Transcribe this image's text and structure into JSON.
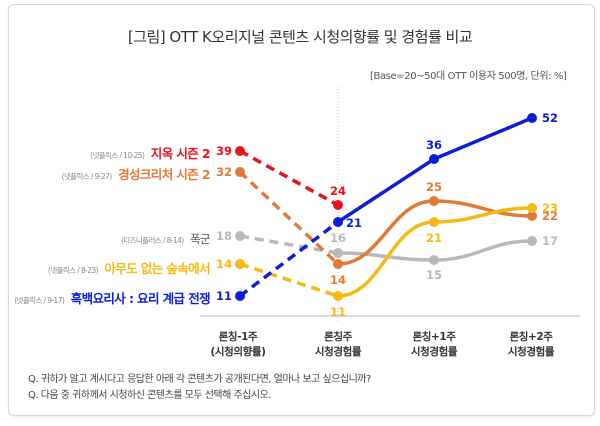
{
  "chart_data": {
    "type": "line",
    "title": "[그림] OTT K오리지널 콘텐츠 시청의향률 및 경험률 비교",
    "subtitle": "[Base=20~50대 OTT 이용자 500명, 단위: %]",
    "xlabel": "",
    "ylabel": "",
    "grid": false,
    "legend": "left (inline labels)",
    "categories": [
      {
        "line1": "론칭-1주",
        "line2": "(시청의향률)"
      },
      {
        "line1": "론칭주",
        "line2": "시청경험률"
      },
      {
        "line1": "론칭+1주",
        "line2": "시청경험률"
      },
      {
        "line1": "론칭+2주",
        "line2": "시청경험률"
      }
    ],
    "series": [
      {
        "name": "지옥 시즌 2",
        "source": "(넷플릭스 / 10-25)",
        "color": "#e8141b",
        "values": [
          39,
          24,
          null,
          null
        ]
      },
      {
        "name": "경성크리처 시즌 2",
        "source": "(넷플릭스 / 9-27)",
        "color": "#e07a38",
        "values": [
          32,
          14,
          25,
          22
        ]
      },
      {
        "name": "폭군",
        "source": "(디즈니플러스 / 8-14)",
        "color": "#b9b9b9",
        "values": [
          18,
          16,
          15,
          17
        ]
      },
      {
        "name": "아무도 없는 숲속에서",
        "source": "(넷플릭스 / 8-23)",
        "color": "#f5b915",
        "values": [
          14,
          11,
          21,
          23
        ]
      },
      {
        "name": "흑백요리사 : 요리 계급 전쟁",
        "source": "(넷플릭스 / 9-17)",
        "color": "#0a1ed6",
        "values": [
          11,
          21,
          36,
          52
        ]
      }
    ],
    "notes": "Segment from 론칭-1주 to 론칭주 is dashed (intention); later segments solid."
  },
  "questions": [
    "Q. 귀하가 알고 계시다고 응답한 아래 각 콘텐츠가 공개된다면, 얼마나 보고 싶으십니까?",
    "Q. 다음 중 귀하께서 시청하신 콘텐츠를 모두 선택해 주십시오."
  ],
  "label_colors": {
    "name_dark_gray": "#555555"
  }
}
